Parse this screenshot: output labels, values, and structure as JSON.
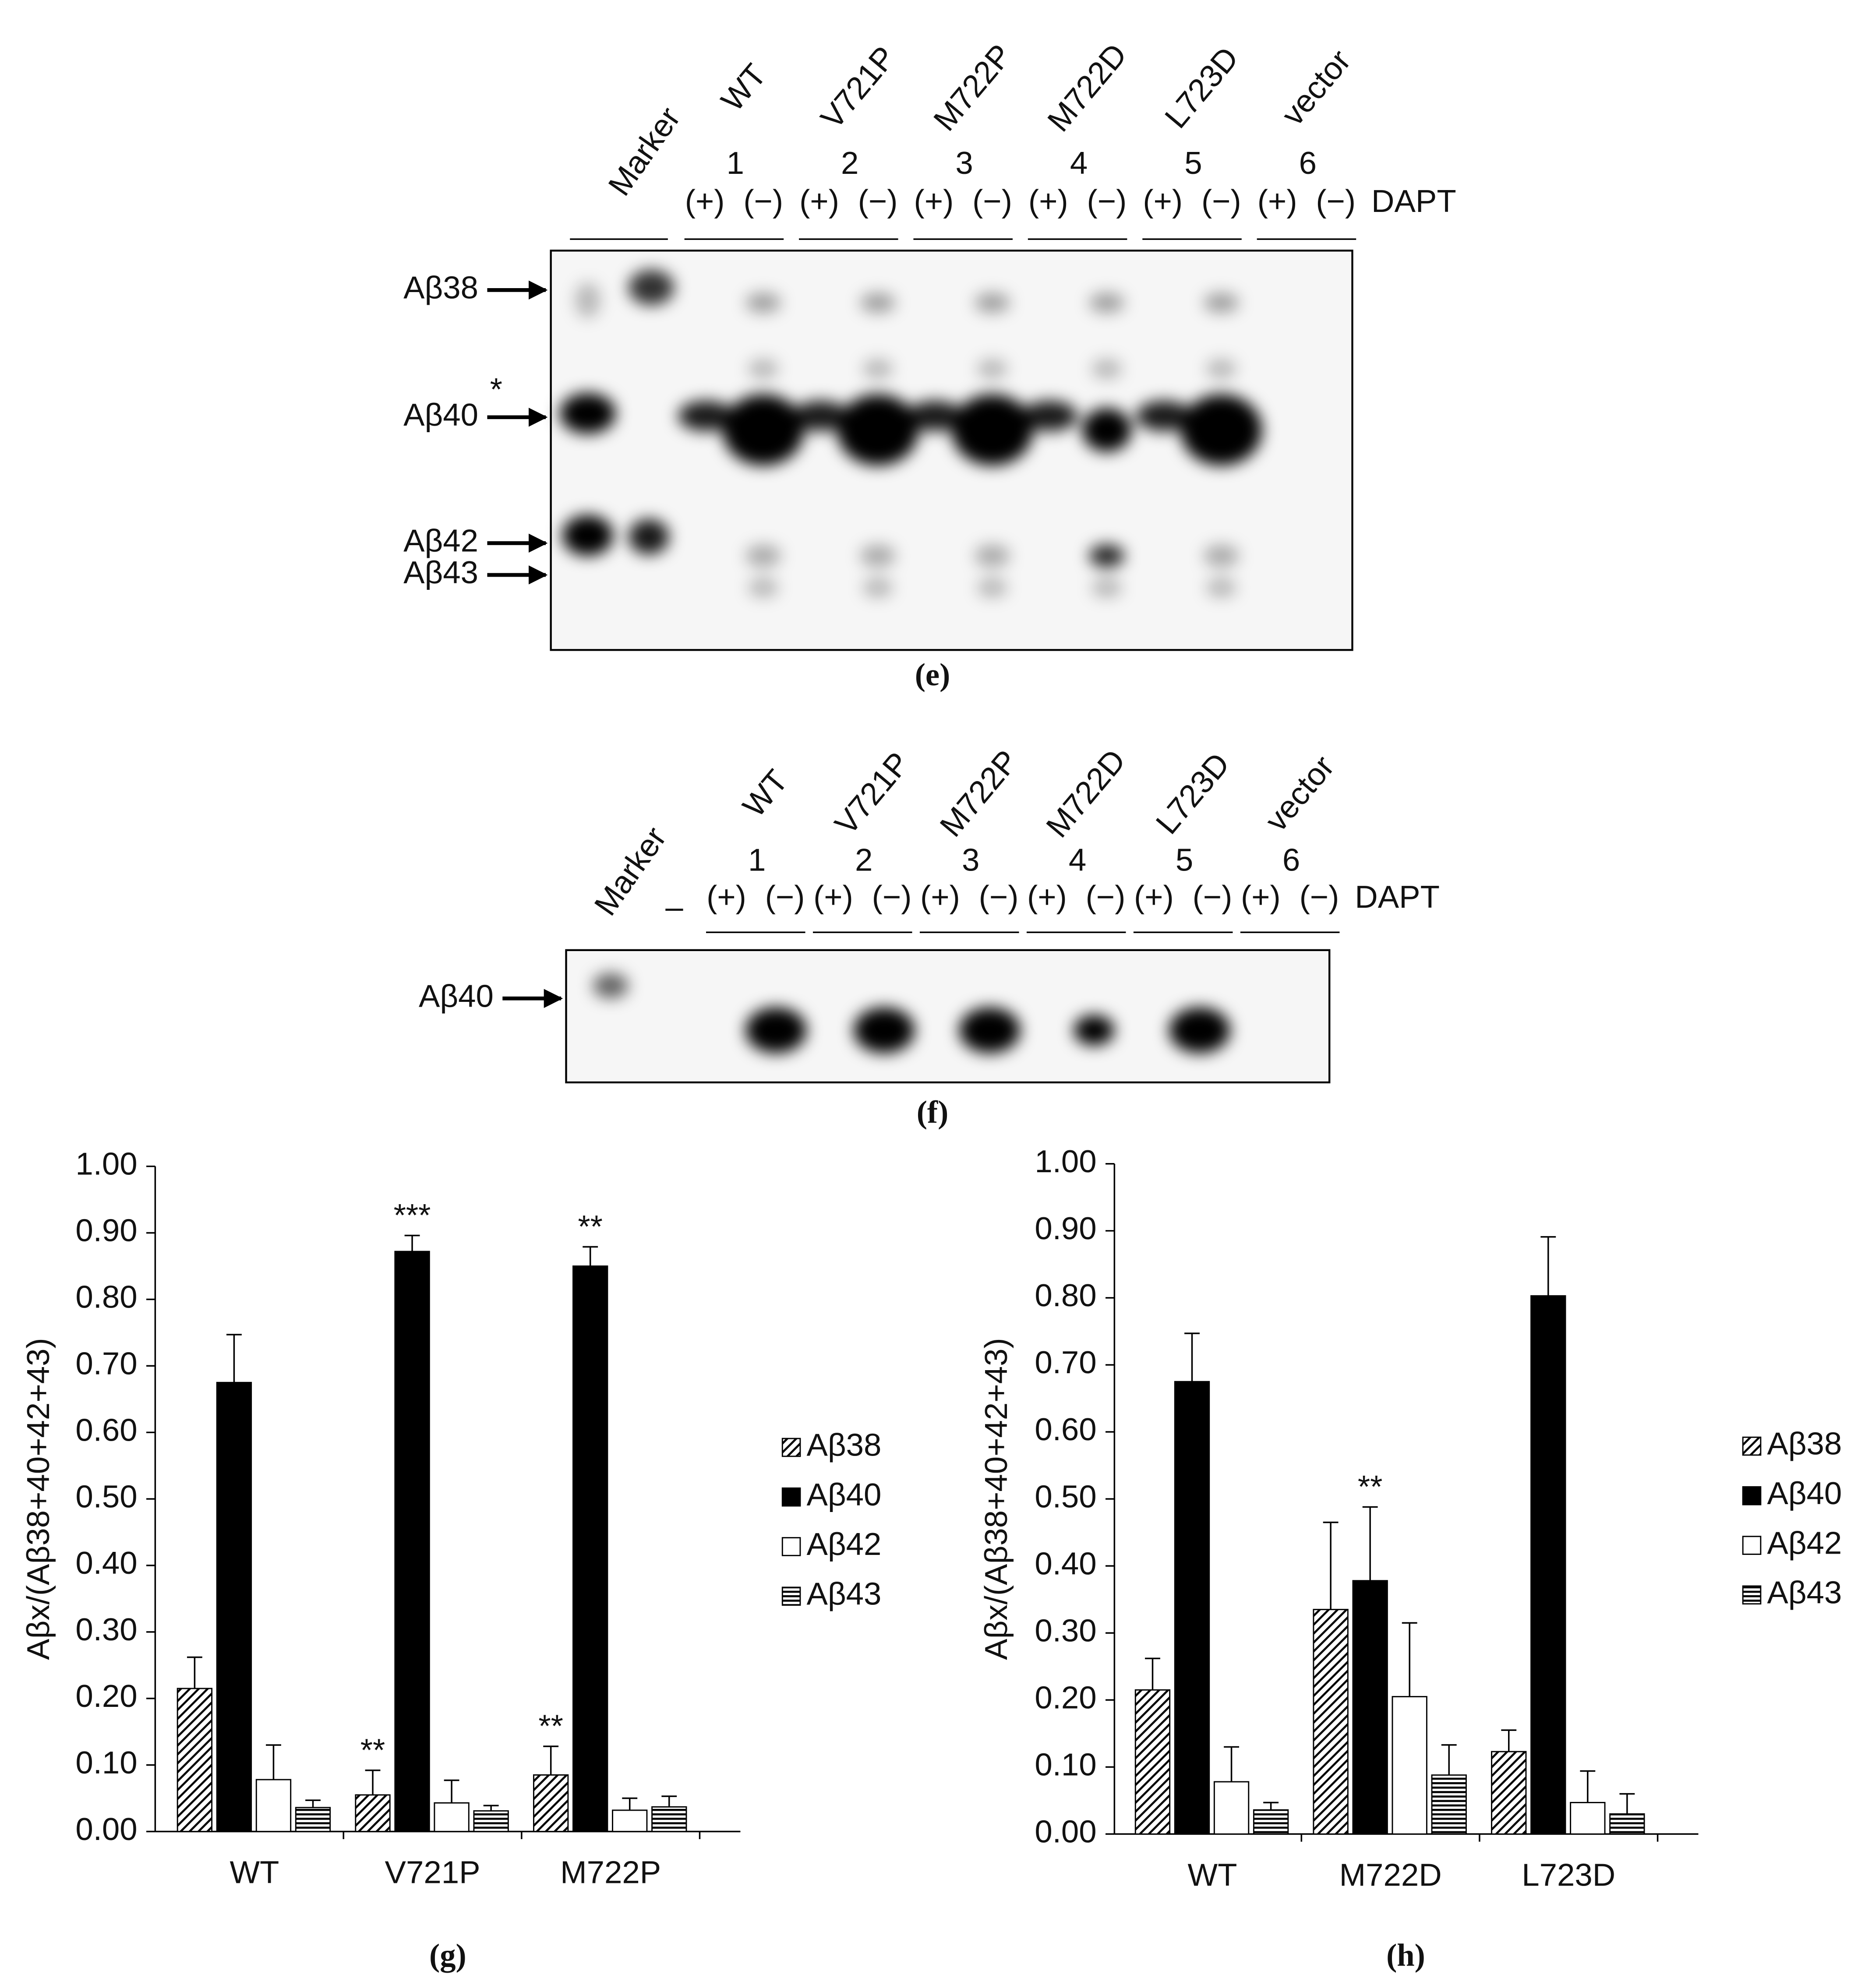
{
  "blot_e": {
    "marker": "Marker",
    "lanes": [
      "WT",
      "V721P",
      "M722P",
      "M722D",
      "L723D",
      "vector"
    ],
    "lane_numbers": [
      1,
      2,
      3,
      4,
      5,
      6
    ],
    "treatments": [
      "(+)",
      "(−)"
    ],
    "treatment_label": "DAPT",
    "bands": [
      "Aβ38",
      "Aβ40",
      "Aβ42",
      "Aβ43"
    ],
    "band_note": "*",
    "panel_label": "(e)"
  },
  "blot_f": {
    "marker": "Marker",
    "blank_lane": "–",
    "lanes": [
      "WT",
      "V721P",
      "M722P",
      "M722D",
      "L723D",
      "vector"
    ],
    "lane_numbers": [
      1,
      2,
      3,
      4,
      5,
      6
    ],
    "treatments": [
      "(+)",
      "(−)"
    ],
    "treatment_label": "DAPT",
    "bands": [
      "Aβ40"
    ],
    "panel_label": "(f)"
  },
  "chart_data": [
    {
      "type": "bar",
      "panel_label": "(g)",
      "y_label": "Aβx/(Aβ38+40+42+43)",
      "categories": [
        "WT",
        "V721P",
        "M722P"
      ],
      "series": [
        {
          "name": "Aβ38",
          "color": "#000000",
          "pattern": "diagonal",
          "values": [
            0.215,
            0.055,
            0.085
          ],
          "errors": [
            0.047,
            0.037,
            0.043
          ],
          "significance": [
            null,
            "**",
            "**"
          ]
        },
        {
          "name": "Aβ40",
          "color": "#000000",
          "pattern": "solid",
          "values": [
            0.675,
            0.872,
            0.85
          ],
          "errors": [
            0.072,
            0.024,
            0.029
          ],
          "significance": [
            null,
            "***",
            "**"
          ]
        },
        {
          "name": "Aβ42",
          "color": "#ffffff",
          "pattern": "solid",
          "values": [
            0.078,
            0.043,
            0.032
          ],
          "errors": [
            0.052,
            0.034,
            0.018
          ],
          "significance": [
            null,
            null,
            null
          ]
        },
        {
          "name": "Aβ43",
          "color": "#000000",
          "pattern": "horizontal",
          "values": [
            0.036,
            0.031,
            0.037
          ],
          "errors": [
            0.011,
            0.008,
            0.016
          ],
          "significance": [
            null,
            null,
            null
          ]
        }
      ],
      "ylim": [
        0,
        1
      ],
      "yticks": [
        {
          "value": 0,
          "label": "0.00"
        },
        {
          "value": 0.1,
          "label": "0.10"
        },
        {
          "value": 0.2,
          "label": "0.20"
        },
        {
          "value": 0.3,
          "label": "0.30"
        },
        {
          "value": 0.4,
          "label": "0.40"
        },
        {
          "value": 0.5,
          "label": "0.50"
        },
        {
          "value": 0.6,
          "label": "0.60"
        },
        {
          "value": 0.7,
          "label": "0.70"
        },
        {
          "value": 0.8,
          "label": "0.80"
        },
        {
          "value": 0.9,
          "label": "0.90"
        },
        {
          "value": 1,
          "label": "1.00"
        }
      ]
    },
    {
      "type": "bar",
      "panel_label": "(h)",
      "y_label": "Aβx/(Aβ38+40+42+43)",
      "categories": [
        "WT",
        "M722D",
        "L723D"
      ],
      "series": [
        {
          "name": "Aβ38",
          "color": "#000000",
          "pattern": "diagonal",
          "values": [
            0.215,
            0.335,
            0.123
          ],
          "errors": [
            0.047,
            0.13,
            0.032
          ],
          "significance": [
            null,
            null,
            null
          ]
        },
        {
          "name": "Aβ40",
          "color": "#000000",
          "pattern": "solid",
          "values": [
            0.675,
            0.378,
            0.803
          ],
          "errors": [
            0.072,
            0.11,
            0.088
          ],
          "significance": [
            null,
            "**",
            null
          ]
        },
        {
          "name": "Aβ42",
          "color": "#ffffff",
          "pattern": "solid",
          "values": [
            0.078,
            0.205,
            0.047
          ],
          "errors": [
            0.052,
            0.11,
            0.047
          ],
          "significance": [
            null,
            null,
            null
          ]
        },
        {
          "name": "Aβ43",
          "color": "#000000",
          "pattern": "horizontal",
          "values": [
            0.036,
            0.088,
            0.03
          ],
          "errors": [
            0.011,
            0.045,
            0.03
          ],
          "significance": [
            null,
            null,
            null
          ]
        }
      ],
      "ylim": [
        0,
        1
      ],
      "yticks": [
        {
          "value": 0,
          "label": "0.00"
        },
        {
          "value": 0.1,
          "label": "0.10"
        },
        {
          "value": 0.2,
          "label": "0.20"
        },
        {
          "value": 0.3,
          "label": "0.30"
        },
        {
          "value": 0.4,
          "label": "0.40"
        },
        {
          "value": 0.5,
          "label": "0.50"
        },
        {
          "value": 0.6,
          "label": "0.60"
        },
        {
          "value": 0.7,
          "label": "0.70"
        },
        {
          "value": 0.8,
          "label": "0.80"
        },
        {
          "value": 0.9,
          "label": "0.90"
        },
        {
          "value": 1,
          "label": "1.00"
        }
      ]
    }
  ]
}
